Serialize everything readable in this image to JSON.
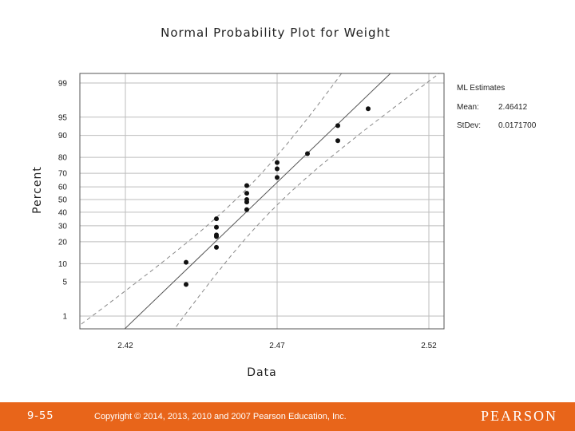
{
  "chart_data": {
    "type": "scatter",
    "title": "Normal Probability Plot for Weight",
    "xlabel": "Data",
    "ylabel": "Percent",
    "xlim": [
      2.405,
      2.525
    ],
    "x_ticks": [
      "2.42",
      "2.47",
      "2.52"
    ],
    "x_tick_values": [
      2.42,
      2.47,
      2.52
    ],
    "y_ticks": [
      "1",
      "5",
      "10",
      "20",
      "30",
      "40",
      "50",
      "60",
      "70",
      "80",
      "90",
      "95",
      "99"
    ],
    "y_tick_values": [
      1,
      5,
      10,
      20,
      30,
      40,
      50,
      60,
      70,
      80,
      90,
      95,
      99
    ],
    "grid": true,
    "series": [
      {
        "points": [
          {
            "x": 2.44,
            "y": 4.5
          },
          {
            "x": 2.44,
            "y": 10.5
          },
          {
            "x": 2.45,
            "y": 17
          },
          {
            "x": 2.45,
            "y": 23
          },
          {
            "x": 2.45,
            "y": 24
          },
          {
            "x": 2.45,
            "y": 29
          },
          {
            "x": 2.45,
            "y": 35
          },
          {
            "x": 2.46,
            "y": 42
          },
          {
            "x": 2.46,
            "y": 48
          },
          {
            "x": 2.46,
            "y": 50
          },
          {
            "x": 2.46,
            "y": 55
          },
          {
            "x": 2.46,
            "y": 61
          },
          {
            "x": 2.47,
            "y": 67
          },
          {
            "x": 2.47,
            "y": 73
          },
          {
            "x": 2.47,
            "y": 77
          },
          {
            "x": 2.48,
            "y": 82
          },
          {
            "x": 2.49,
            "y": 88
          },
          {
            "x": 2.49,
            "y": 93
          },
          {
            "x": 2.5,
            "y": 96.5
          }
        ]
      }
    ],
    "fit": {
      "mean": 2.46412,
      "stdev": 0.01717
    },
    "confidence_band": "dashed",
    "estimates": {
      "heading": "ML Estimates",
      "mean_label": "Mean:",
      "mean_value": "2.46412",
      "stdev_label": "StDev:",
      "stdev_value": "0.0171700"
    }
  },
  "footer": {
    "slide_number": "9-55",
    "copyright": "Copyright © 2014, 2013, 2010 and 2007 Pearson Education, Inc.",
    "brand": "PEARSON"
  },
  "colors": {
    "footer_bg": "#e8651a",
    "points": "#111111",
    "grid": "#bdbdbd"
  }
}
